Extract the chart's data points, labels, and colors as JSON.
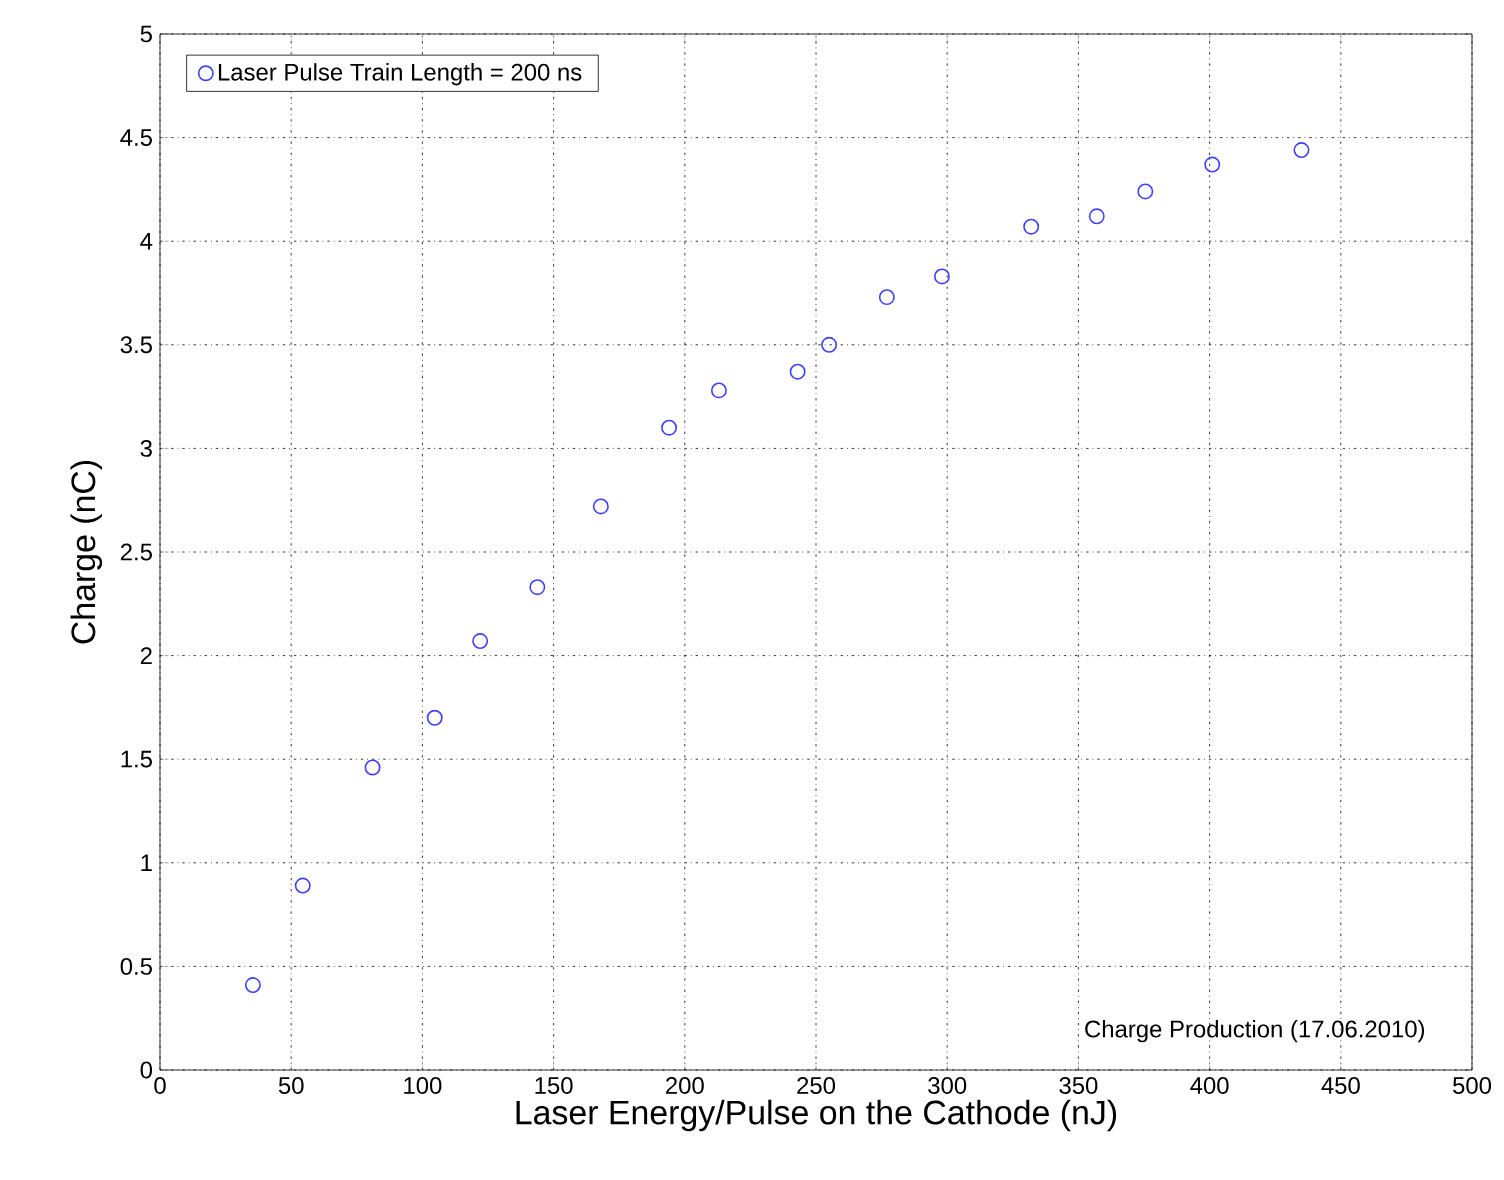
{
  "chart_data": {
    "type": "scatter",
    "xlabel": "Laser Energy/Pulse on the Cathode (nJ)",
    "ylabel": "Charge (nC)",
    "series": [
      {
        "name": "Laser Pulse Train Length = 200 ns",
        "color": "#3f3fff",
        "marker": "circle",
        "x": [
          35.4,
          54.4,
          81,
          104.7,
          122,
          143.8,
          168,
          194,
          213,
          243,
          255,
          277,
          298,
          332,
          357,
          375.5,
          401,
          435
        ],
        "values": [
          0.41,
          0.89,
          1.46,
          1.7,
          2.07,
          2.33,
          2.72,
          3.1,
          3.28,
          3.37,
          3.5,
          3.73,
          3.83,
          4.07,
          4.12,
          4.24,
          4.37,
          4.44
        ]
      }
    ],
    "xlim": [
      0,
      500
    ],
    "xticks": [
      0,
      50,
      100,
      150,
      200,
      250,
      300,
      350,
      400,
      450,
      500
    ],
    "ylim": [
      0,
      5
    ],
    "yticks": [
      0,
      0.5,
      1,
      1.5,
      2,
      2.5,
      3,
      3.5,
      4,
      4.5,
      5
    ],
    "grid": true,
    "legend": "top left",
    "annotations": [
      "Charge Production (17.06.2010)"
    ]
  }
}
